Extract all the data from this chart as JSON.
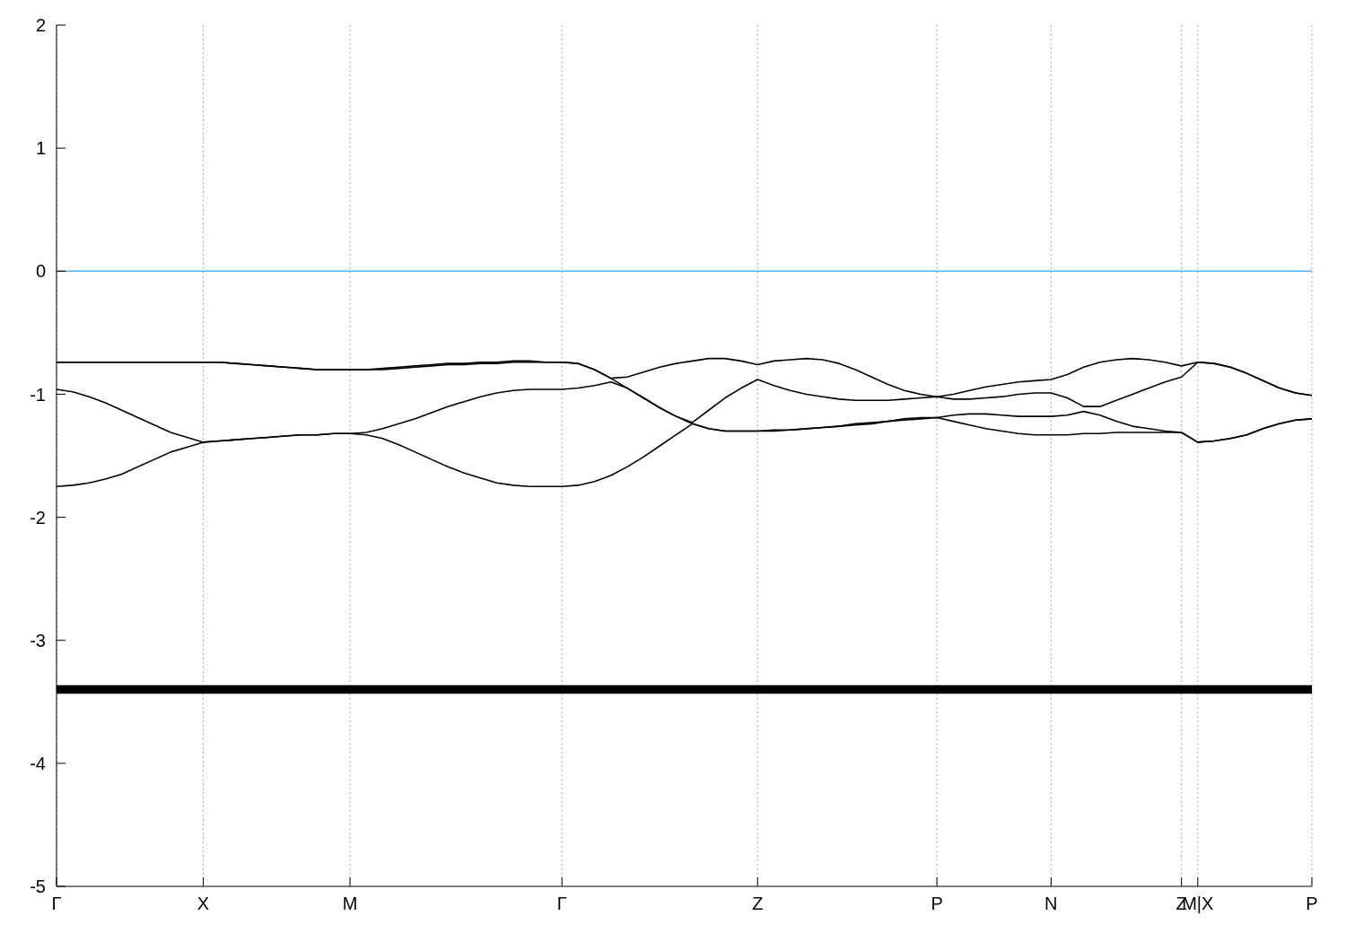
{
  "chart_data": {
    "type": "line",
    "categories": [
      "Γ",
      null,
      null,
      null,
      null,
      null,
      null,
      null,
      null,
      "X",
      null,
      null,
      null,
      null,
      null,
      null,
      null,
      null,
      "M",
      null,
      null,
      null,
      null,
      null,
      null,
      null,
      null,
      null,
      null,
      null,
      null,
      "Γ",
      null,
      null,
      null,
      null,
      null,
      null,
      null,
      null,
      null,
      null,
      null,
      "Z",
      null,
      null,
      null,
      null,
      null,
      null,
      null,
      null,
      null,
      null,
      "P",
      null,
      null,
      null,
      null,
      null,
      null,
      "N",
      null,
      null,
      null,
      null,
      null,
      null,
      null,
      "Z",
      "M|X",
      null,
      null,
      null,
      null,
      null,
      null,
      "P"
    ],
    "series": [
      {
        "color": "#000000",
        "values": [
          -0.74,
          -0.74,
          -0.74,
          -0.74,
          -0.74,
          -0.74,
          -0.74,
          -0.74,
          -0.74,
          -0.74,
          -0.74,
          -0.75,
          -0.76,
          -0.77,
          -0.78,
          -0.79,
          -0.8,
          -0.8,
          -0.8,
          -0.8,
          -0.79,
          -0.78,
          -0.77,
          -0.76,
          -0.75,
          -0.75,
          -0.74,
          -0.74,
          -0.73,
          -0.73,
          -0.74,
          -0.74,
          -0.75,
          -0.8,
          -0.87,
          -0.86,
          -0.82,
          -0.78,
          -0.75,
          -0.73,
          -0.71,
          -0.71,
          -0.73,
          -0.76,
          -0.73,
          -0.72,
          -0.71,
          -0.72,
          -0.75,
          -0.8,
          -0.86,
          -0.92,
          -0.97,
          -1.0,
          -1.02,
          -1.0,
          -0.97,
          -0.94,
          -0.92,
          -0.9,
          -0.89,
          -0.88,
          -0.84,
          -0.78,
          -0.74,
          -0.72,
          -0.71,
          -0.72,
          -0.74,
          -0.77,
          -0.74,
          -0.75,
          -0.78,
          -0.83,
          -0.89,
          -0.95,
          -0.99,
          -1.01
        ]
      },
      {
        "color": "#000000",
        "values": [
          -0.74,
          -0.74,
          -0.74,
          -0.74,
          -0.74,
          -0.74,
          -0.74,
          -0.74,
          -0.74,
          -0.74,
          -0.74,
          -0.75,
          -0.76,
          -0.77,
          -0.78,
          -0.79,
          -0.8,
          -0.8,
          -0.8,
          -0.8,
          -0.8,
          -0.79,
          -0.78,
          -0.77,
          -0.76,
          -0.76,
          -0.75,
          -0.75,
          -0.74,
          -0.74,
          -0.74,
          -0.74,
          -0.75,
          -0.8,
          -0.87,
          -0.95,
          -1.03,
          -1.11,
          -1.18,
          -1.23,
          -1.13,
          -1.03,
          -0.95,
          -0.88,
          -0.93,
          -0.97,
          -1.0,
          -1.02,
          -1.04,
          -1.05,
          -1.05,
          -1.05,
          -1.04,
          -1.03,
          -1.02,
          -1.04,
          -1.04,
          -1.03,
          -1.02,
          -1.0,
          -0.99,
          -0.99,
          -1.03,
          -1.1,
          -1.1,
          -1.05,
          -1.0,
          -0.95,
          -0.9,
          -0.86,
          -0.74,
          -0.75,
          -0.78,
          -0.83,
          -0.89,
          -0.95,
          -0.99,
          -1.01
        ]
      },
      {
        "color": "#000000",
        "values": [
          -0.96,
          -0.98,
          -1.02,
          -1.07,
          -1.13,
          -1.19,
          -1.25,
          -1.31,
          -1.35,
          -1.39,
          -1.38,
          -1.37,
          -1.36,
          -1.35,
          -1.34,
          -1.33,
          -1.33,
          -1.32,
          -1.32,
          -1.31,
          -1.28,
          -1.24,
          -1.2,
          -1.15,
          -1.1,
          -1.06,
          -1.02,
          -0.99,
          -0.97,
          -0.96,
          -0.96,
          -0.96,
          -0.95,
          -0.93,
          -0.9,
          -0.95,
          -1.03,
          -1.11,
          -1.18,
          -1.24,
          -1.28,
          -1.3,
          -1.3,
          -1.3,
          -1.29,
          -1.29,
          -1.28,
          -1.27,
          -1.26,
          -1.24,
          -1.23,
          -1.22,
          -1.2,
          -1.19,
          -1.19,
          -1.17,
          -1.16,
          -1.16,
          -1.17,
          -1.18,
          -1.18,
          -1.18,
          -1.17,
          -1.14,
          -1.17,
          -1.22,
          -1.26,
          -1.28,
          -1.3,
          -1.31,
          -1.39,
          -1.38,
          -1.36,
          -1.33,
          -1.28,
          -1.24,
          -1.21,
          -1.2
        ]
      },
      {
        "color": "#000000",
        "values": [
          -1.75,
          -1.74,
          -1.72,
          -1.69,
          -1.65,
          -1.59,
          -1.53,
          -1.47,
          -1.43,
          -1.39,
          -1.38,
          -1.37,
          -1.36,
          -1.35,
          -1.34,
          -1.33,
          -1.33,
          -1.32,
          -1.32,
          -1.33,
          -1.36,
          -1.41,
          -1.47,
          -1.53,
          -1.59,
          -1.64,
          -1.68,
          -1.72,
          -1.74,
          -1.75,
          -1.75,
          -1.75,
          -1.74,
          -1.71,
          -1.66,
          -1.59,
          -1.51,
          -1.42,
          -1.33,
          -1.24,
          -1.28,
          -1.3,
          -1.3,
          -1.3,
          -1.3,
          -1.29,
          -1.28,
          -1.27,
          -1.26,
          -1.25,
          -1.24,
          -1.22,
          -1.21,
          -1.2,
          -1.19,
          -1.22,
          -1.25,
          -1.28,
          -1.3,
          -1.32,
          -1.33,
          -1.33,
          -1.33,
          -1.32,
          -1.32,
          -1.31,
          -1.31,
          -1.31,
          -1.31,
          -1.31,
          -1.39,
          -1.38,
          -1.36,
          -1.33,
          -1.28,
          -1.24,
          -1.21,
          -1.2
        ]
      },
      {
        "color": "#000000",
        "values": [
          -3.38,
          -3.38,
          -3.38,
          -3.38,
          -3.38,
          -3.38,
          -3.38,
          -3.38,
          -3.38,
          -3.38,
          -3.38,
          -3.38,
          -3.38,
          -3.38,
          -3.38,
          -3.38,
          -3.38,
          -3.38,
          -3.38,
          -3.38,
          -3.38,
          -3.38,
          -3.38,
          -3.38,
          -3.38,
          -3.38,
          -3.38,
          -3.38,
          -3.38,
          -3.38,
          -3.38,
          -3.38,
          -3.38,
          -3.38,
          -3.38,
          -3.38,
          -3.38,
          -3.38,
          -3.38,
          -3.38,
          -3.38,
          -3.38,
          -3.38,
          -3.38,
          -3.38,
          -3.38,
          -3.38,
          -3.38,
          -3.38,
          -3.38,
          -3.38,
          -3.38,
          -3.38,
          -3.38,
          -3.38,
          -3.38,
          -3.38,
          -3.38,
          -3.38,
          -3.38,
          -3.38,
          -3.38,
          -3.38,
          -3.38,
          -3.38,
          -3.38,
          -3.38,
          -3.38,
          -3.38,
          -3.38,
          -3.38,
          -3.38,
          -3.38,
          -3.38,
          -3.38,
          -3.38,
          -3.38,
          -3.38
        ]
      },
      {
        "color": "#000000",
        "values": [
          -3.4,
          -3.4,
          -3.4,
          -3.4,
          -3.4,
          -3.4,
          -3.4,
          -3.4,
          -3.4,
          -3.4,
          -3.4,
          -3.4,
          -3.4,
          -3.4,
          -3.4,
          -3.4,
          -3.4,
          -3.4,
          -3.4,
          -3.4,
          -3.4,
          -3.4,
          -3.4,
          -3.4,
          -3.4,
          -3.4,
          -3.4,
          -3.4,
          -3.4,
          -3.4,
          -3.4,
          -3.4,
          -3.4,
          -3.4,
          -3.4,
          -3.4,
          -3.4,
          -3.4,
          -3.4,
          -3.4,
          -3.4,
          -3.4,
          -3.4,
          -3.4,
          -3.4,
          -3.4,
          -3.4,
          -3.4,
          -3.4,
          -3.4,
          -3.4,
          -3.4,
          -3.4,
          -3.4,
          -3.4,
          -3.4,
          -3.4,
          -3.4,
          -3.4,
          -3.4,
          -3.4,
          -3.4,
          -3.4,
          -3.4,
          -3.4,
          -3.4,
          -3.4,
          -3.4,
          -3.4,
          -3.4,
          -3.4,
          -3.4,
          -3.4,
          -3.4,
          -3.4,
          -3.4,
          -3.4,
          -3.4
        ]
      },
      {
        "color": "#000000",
        "values": [
          -3.42,
          -3.42,
          -3.42,
          -3.42,
          -3.42,
          -3.42,
          -3.42,
          -3.42,
          -3.42,
          -3.42,
          -3.42,
          -3.42,
          -3.42,
          -3.42,
          -3.42,
          -3.42,
          -3.42,
          -3.42,
          -3.42,
          -3.42,
          -3.42,
          -3.42,
          -3.42,
          -3.42,
          -3.42,
          -3.42,
          -3.42,
          -3.42,
          -3.42,
          -3.42,
          -3.42,
          -3.42,
          -3.42,
          -3.42,
          -3.42,
          -3.42,
          -3.42,
          -3.42,
          -3.42,
          -3.42,
          -3.42,
          -3.42,
          -3.42,
          -3.42,
          -3.42,
          -3.42,
          -3.42,
          -3.42,
          -3.42,
          -3.42,
          -3.42,
          -3.42,
          -3.42,
          -3.42,
          -3.42,
          -3.42,
          -3.42,
          -3.42,
          -3.42,
          -3.42,
          -3.42,
          -3.42,
          -3.42,
          -3.42,
          -3.42,
          -3.42,
          -3.42,
          -3.42,
          -3.42,
          -3.42,
          -3.42,
          -3.42,
          -3.42,
          -3.42,
          -3.42,
          -3.42,
          -3.42,
          -3.42
        ]
      }
    ],
    "ylim": [
      -5,
      2
    ],
    "yticks": [
      -5,
      -4,
      -3,
      -2,
      -1,
      0,
      1,
      2
    ],
    "grid": "x",
    "marker": "none",
    "line_style": "solid",
    "ref_lines": [
      {
        "axis": "y",
        "value": 0,
        "color": "#56b4e9"
      }
    ]
  }
}
